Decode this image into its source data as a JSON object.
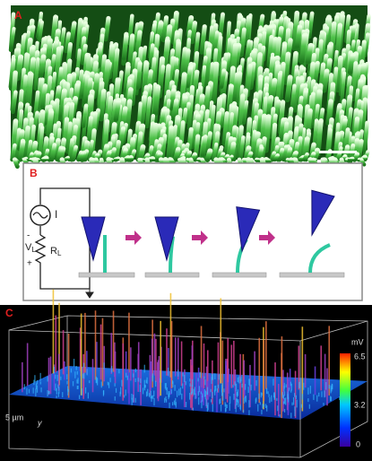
{
  "panels": {
    "a": {
      "label": "A"
    },
    "b": {
      "label": "B",
      "circuit": {
        "source": "I",
        "voltage": "V",
        "voltage_sub": "L",
        "resistor": "R",
        "resistor_sub": "L",
        "plus": "+",
        "minus": "-"
      }
    },
    "c": {
      "label": "C",
      "unit": "mV",
      "scale_top": "6.5",
      "scale_mid": "3.2",
      "scale_bottom": "0",
      "length": "5 µm",
      "axis_y": "y"
    }
  }
}
